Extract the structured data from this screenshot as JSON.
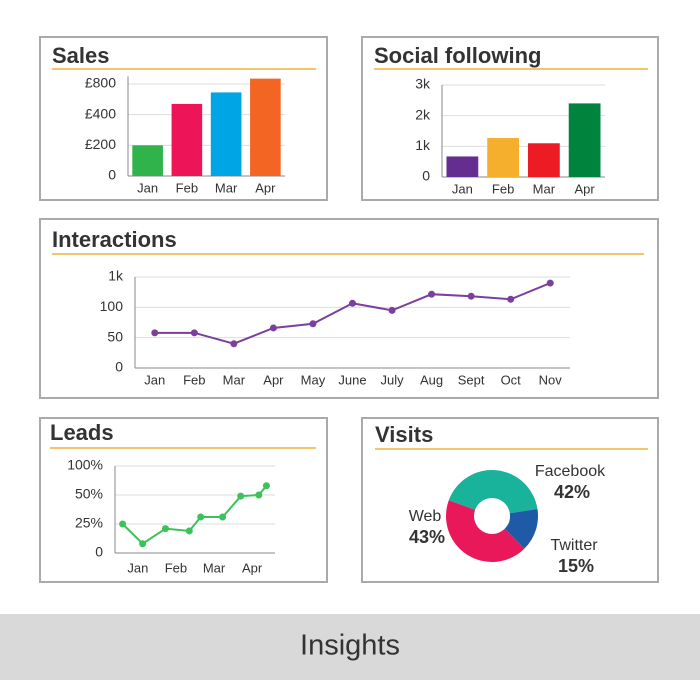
{
  "chart_data": [
    {
      "type": "bar",
      "title": "Sales",
      "categories": [
        "Jan",
        "Feb",
        "Mar",
        "Apr"
      ],
      "values": [
        200,
        540,
        690,
        870
      ],
      "colors": [
        "#2fb34a",
        "#ed1558",
        "#00a5e6",
        "#f26522"
      ],
      "ylim": [
        0,
        900
      ],
      "yscale": "tick-spaced",
      "yticks": [
        0,
        {
          "value": 200,
          "label": "£200"
        },
        {
          "value": 400,
          "label": "£400"
        },
        {
          "value": 800,
          "label": "£800"
        }
      ],
      "grid": true
    },
    {
      "type": "bar",
      "title": "Social following",
      "categories": [
        "Jan",
        "Feb",
        "Mar",
        "Apr"
      ],
      "values": [
        670,
        1270,
        1100,
        2400
      ],
      "colors": [
        "#662d91",
        "#f6ae2d",
        "#ed1c24",
        "#00843d"
      ],
      "ylim": [
        0,
        3000
      ],
      "yscale": "linear",
      "yticks": [
        0,
        {
          "value": 1000,
          "label": "1k"
        },
        {
          "value": 2000,
          "label": "2k"
        },
        {
          "value": 3000,
          "label": "3k"
        }
      ],
      "grid": true
    },
    {
      "type": "line",
      "title": "Interactions",
      "categories": [
        "Jan",
        "Feb",
        "Mar",
        "Apr",
        "May",
        "June",
        "July",
        "Aug",
        "Sept",
        "Oct",
        "Nov"
      ],
      "values": [
        58,
        58,
        40,
        66,
        73,
        220,
        95,
        490,
        430,
        340,
        820
      ],
      "color": "#7b3f9e",
      "ylim": [
        0,
        1000
      ],
      "yscale": "tick-spaced",
      "yticks": [
        0,
        50,
        100,
        {
          "value": 1000,
          "label": "1k"
        }
      ],
      "grid": true
    },
    {
      "type": "line",
      "title": "Leads",
      "x": [
        0.6,
        1.125,
        1.725,
        2.35,
        2.65,
        3.225,
        3.7,
        4.175,
        4.375
      ],
      "values": [
        25,
        8,
        21,
        19,
        31,
        31,
        49,
        50,
        66
      ],
      "color": "#3cc25a",
      "xlim": [
        0.4,
        4.6
      ],
      "xticks": [
        {
          "value": 1,
          "label": "Jan"
        },
        {
          "value": 2,
          "label": "Feb"
        },
        {
          "value": 3,
          "label": "Mar"
        },
        {
          "value": 4,
          "label": "Apr"
        }
      ],
      "ylim": [
        0,
        100
      ],
      "yscale": "tick-spaced",
      "yticks": [
        0,
        {
          "value": 25,
          "label": "25%"
        },
        {
          "value": 50,
          "label": "50%"
        },
        {
          "value": 100,
          "label": "100%"
        }
      ],
      "grid": true
    },
    {
      "type": "pie",
      "title": "Visits",
      "categories": [
        "Facebook",
        "Twitter",
        "Web"
      ],
      "values": [
        42,
        15,
        43
      ],
      "value_labels": [
        "42%",
        "15%",
        "43%"
      ],
      "colors": [
        "#19b39b",
        "#1f5aa6",
        "#e8185a"
      ],
      "donut": true
    }
  ],
  "footer": {
    "title": "Insights"
  }
}
